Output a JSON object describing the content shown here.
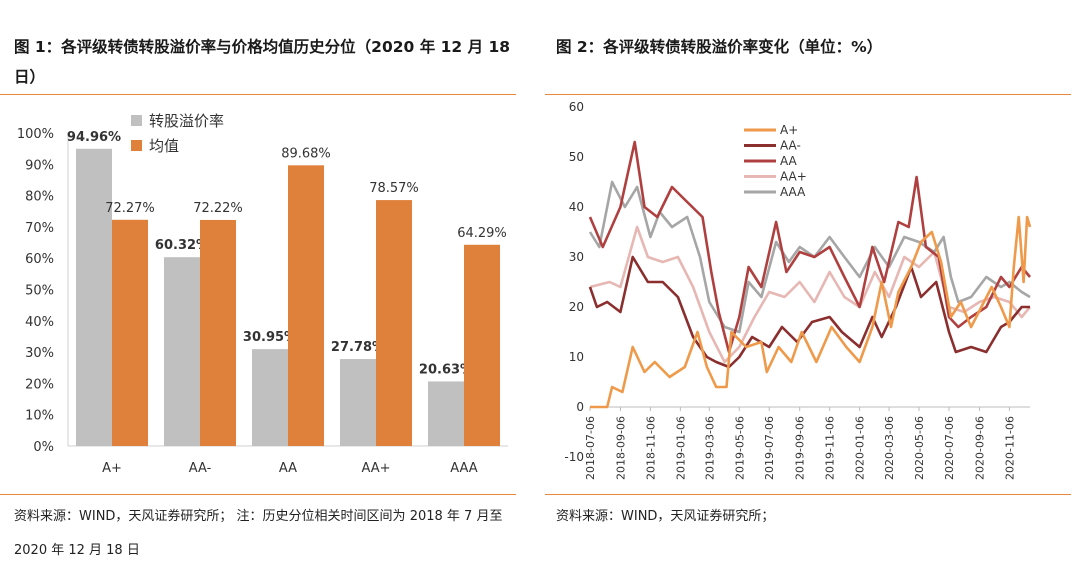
{
  "figure1": {
    "title": "图 1：各评级转债转股溢价率与价格均值历史分位（2020 年 12 月 18 日）",
    "source": "资料来源：WIND，天风证券研究所；  注：历史分位相关时间区间为 2018 年 7 月至 2020 年 12 月 18 日"
  },
  "figure2": {
    "title": "图 2：各评级转债转股溢价率变化（单位：%）",
    "source": "资料来源：WIND，天风证券研究所；"
  },
  "colors": {
    "premium_bar": "#c0c0c0",
    "price_bar": "#e0813b",
    "rule": "#e8883a",
    "A+": "#ef9a4a",
    "AA-": "#8b2e2e",
    "AA": "#b04040",
    "AA+": "#e6b7b3",
    "AAA": "#a6a6a6"
  },
  "chart_data": [
    {
      "type": "bar",
      "categories": [
        "A+",
        "AA-",
        "AA",
        "AA+",
        "AAA"
      ],
      "series": [
        {
          "name": "转股溢价率",
          "values": [
            94.96,
            60.32,
            30.95,
            27.78,
            20.63
          ]
        },
        {
          "name": "均值",
          "values": [
            72.27,
            72.22,
            89.68,
            78.57,
            64.29
          ]
        }
      ],
      "value_labels": {
        "转股溢价率": [
          "94.96%",
          "60.32%",
          "30.95%",
          "27.78%",
          "20.63%"
        ],
        "均值": [
          "72.27%",
          "72.22%",
          "89.68%",
          "78.57%",
          "64.29%"
        ]
      },
      "y_ticks": [
        "0%",
        "10%",
        "20%",
        "30%",
        "40%",
        "50%",
        "60%",
        "70%",
        "80%",
        "90%",
        "100%"
      ],
      "ylim": [
        0,
        100
      ],
      "legend": "top-center",
      "grid": false
    },
    {
      "type": "line",
      "x_ticks": [
        "2018-07-06",
        "2018-09-06",
        "2018-11-06",
        "2019-01-06",
        "2019-03-06",
        "2019-05-06",
        "2019-07-06",
        "2019-09-06",
        "2019-11-06",
        "2020-01-06",
        "2020-03-06",
        "2020-05-06",
        "2020-07-06",
        "2020-09-06",
        "2020-11-06"
      ],
      "y_ticks": [
        "-10",
        "0",
        "10",
        "20",
        "30",
        "40",
        "50",
        "60"
      ],
      "ylim": [
        -10,
        60
      ],
      "xlim": [
        "2018-07-06",
        "2020-12-18"
      ],
      "legend": "top-left",
      "grid": false,
      "series": [
        {
          "name": "A+",
          "points": [
            [
              "2018-07-06",
              0
            ],
            [
              "2018-08-10",
              0
            ],
            [
              "2018-08-20",
              4
            ],
            [
              "2018-09-10",
              3
            ],
            [
              "2018-10-01",
              12
            ],
            [
              "2018-10-25",
              7
            ],
            [
              "2018-11-15",
              9
            ],
            [
              "2018-12-15",
              6
            ],
            [
              "2019-01-15",
              8
            ],
            [
              "2019-02-10",
              15
            ],
            [
              "2019-03-01",
              8
            ],
            [
              "2019-03-20",
              4
            ],
            [
              "2019-04-10",
              4
            ],
            [
              "2019-04-20",
              15
            ],
            [
              "2019-05-20",
              12
            ],
            [
              "2019-06-20",
              13
            ],
            [
              "2019-07-01",
              7
            ],
            [
              "2019-07-25",
              12
            ],
            [
              "2019-08-20",
              9
            ],
            [
              "2019-09-10",
              15
            ],
            [
              "2019-10-10",
              9
            ],
            [
              "2019-11-10",
              16
            ],
            [
              "2019-12-10",
              12
            ],
            [
              "2020-01-06",
              9
            ],
            [
              "2020-02-01",
              16
            ],
            [
              "2020-02-20",
              25
            ],
            [
              "2020-03-10",
              16
            ],
            [
              "2020-03-25",
              23
            ],
            [
              "2020-04-20",
              28
            ],
            [
              "2020-05-10",
              33
            ],
            [
              "2020-06-01",
              35
            ],
            [
              "2020-06-20",
              29
            ],
            [
              "2020-07-10",
              18
            ],
            [
              "2020-07-30",
              21
            ],
            [
              "2020-08-20",
              16
            ],
            [
              "2020-09-10",
              20
            ],
            [
              "2020-10-01",
              24
            ],
            [
              "2020-10-20",
              20
            ],
            [
              "2020-11-06",
              16
            ],
            [
              "2020-11-15",
              28
            ],
            [
              "2020-11-25",
              38
            ],
            [
              "2020-12-05",
              25
            ],
            [
              "2020-12-12",
              38
            ],
            [
              "2020-12-18",
              36
            ]
          ]
        },
        {
          "name": "AA-",
          "points": [
            [
              "2018-07-06",
              24
            ],
            [
              "2018-07-20",
              20
            ],
            [
              "2018-08-10",
              21
            ],
            [
              "2018-09-06",
              19
            ],
            [
              "2018-10-01",
              30
            ],
            [
              "2018-11-01",
              25
            ],
            [
              "2018-12-01",
              25
            ],
            [
              "2019-01-01",
              22
            ],
            [
              "2019-02-01",
              14
            ],
            [
              "2019-03-01",
              10
            ],
            [
              "2019-03-20",
              9
            ],
            [
              "2019-04-15",
              8
            ],
            [
              "2019-05-06",
              10
            ],
            [
              "2019-06-01",
              14
            ],
            [
              "2019-07-06",
              12
            ],
            [
              "2019-08-01",
              16
            ],
            [
              "2019-09-01",
              13
            ],
            [
              "2019-10-01",
              17
            ],
            [
              "2019-11-06",
              18
            ],
            [
              "2019-12-01",
              15
            ],
            [
              "2020-01-06",
              12
            ],
            [
              "2020-02-01",
              18
            ],
            [
              "2020-02-20",
              14
            ],
            [
              "2020-03-20",
              20
            ],
            [
              "2020-04-20",
              28
            ],
            [
              "2020-05-10",
              22
            ],
            [
              "2020-06-10",
              25
            ],
            [
              "2020-07-06",
              15
            ],
            [
              "2020-07-20",
              11
            ],
            [
              "2020-08-20",
              12
            ],
            [
              "2020-09-20",
              11
            ],
            [
              "2020-10-20",
              16
            ],
            [
              "2020-11-06",
              17
            ],
            [
              "2020-12-01",
              20
            ],
            [
              "2020-12-18",
              20
            ]
          ]
        },
        {
          "name": "AA",
          "points": [
            [
              "2018-07-06",
              38
            ],
            [
              "2018-08-01",
              32
            ],
            [
              "2018-09-06",
              40
            ],
            [
              "2018-10-05",
              53
            ],
            [
              "2018-10-25",
              40
            ],
            [
              "2018-11-20",
              38
            ],
            [
              "2018-12-20",
              44
            ],
            [
              "2019-01-20",
              41
            ],
            [
              "2019-02-20",
              38
            ],
            [
              "2019-03-10",
              27
            ],
            [
              "2019-03-25",
              19
            ],
            [
              "2019-04-15",
              11
            ],
            [
              "2019-05-06",
              18
            ],
            [
              "2019-05-25",
              28
            ],
            [
              "2019-06-20",
              24
            ],
            [
              "2019-07-20",
              37
            ],
            [
              "2019-08-10",
              27
            ],
            [
              "2019-09-06",
              31
            ],
            [
              "2019-10-06",
              30
            ],
            [
              "2019-11-06",
              32
            ],
            [
              "2019-12-06",
              26
            ],
            [
              "2020-01-06",
              20
            ],
            [
              "2020-02-01",
              32
            ],
            [
              "2020-02-25",
              25
            ],
            [
              "2020-03-25",
              37
            ],
            [
              "2020-04-15",
              36
            ],
            [
              "2020-05-01",
              46
            ],
            [
              "2020-05-20",
              32
            ],
            [
              "2020-06-15",
              30
            ],
            [
              "2020-07-06",
              18
            ],
            [
              "2020-07-25",
              16
            ],
            [
              "2020-08-20",
              18
            ],
            [
              "2020-09-20",
              20
            ],
            [
              "2020-10-20",
              26
            ],
            [
              "2020-11-06",
              24
            ],
            [
              "2020-12-01",
              28
            ],
            [
              "2020-12-18",
              26
            ]
          ]
        },
        {
          "name": "AA+",
          "points": [
            [
              "2018-07-06",
              24
            ],
            [
              "2018-08-15",
              25
            ],
            [
              "2018-09-06",
              24
            ],
            [
              "2018-10-10",
              36
            ],
            [
              "2018-11-01",
              30
            ],
            [
              "2018-12-01",
              29
            ],
            [
              "2019-01-01",
              30
            ],
            [
              "2019-02-01",
              24
            ],
            [
              "2019-03-06",
              15
            ],
            [
              "2019-04-06",
              9
            ],
            [
              "2019-05-06",
              12
            ],
            [
              "2019-06-06",
              18
            ],
            [
              "2019-07-06",
              23
            ],
            [
              "2019-08-06",
              22
            ],
            [
              "2019-09-06",
              25
            ],
            [
              "2019-10-06",
              21
            ],
            [
              "2019-11-06",
              27
            ],
            [
              "2019-12-06",
              22
            ],
            [
              "2020-01-06",
              20
            ],
            [
              "2020-02-06",
              27
            ],
            [
              "2020-03-06",
              22
            ],
            [
              "2020-04-06",
              30
            ],
            [
              "2020-05-06",
              28
            ],
            [
              "2020-06-06",
              31
            ],
            [
              "2020-07-06",
              20
            ],
            [
              "2020-08-06",
              19
            ],
            [
              "2020-09-06",
              21
            ],
            [
              "2020-10-06",
              22
            ],
            [
              "2020-11-06",
              21
            ],
            [
              "2020-12-01",
              18
            ],
            [
              "2020-12-18",
              20
            ]
          ]
        },
        {
          "name": "AAA",
          "points": [
            [
              "2018-07-06",
              35
            ],
            [
              "2018-07-25",
              32
            ],
            [
              "2018-08-20",
              45
            ],
            [
              "2018-09-15",
              40
            ],
            [
              "2018-10-10",
              44
            ],
            [
              "2018-11-06",
              34
            ],
            [
              "2018-11-25",
              39
            ],
            [
              "2018-12-20",
              36
            ],
            [
              "2019-01-20",
              38
            ],
            [
              "2019-02-15",
              30
            ],
            [
              "2019-03-06",
              21
            ],
            [
              "2019-04-06",
              16
            ],
            [
              "2019-05-06",
              15
            ],
            [
              "2019-05-25",
              25
            ],
            [
              "2019-06-20",
              22
            ],
            [
              "2019-07-20",
              33
            ],
            [
              "2019-08-15",
              29
            ],
            [
              "2019-09-06",
              32
            ],
            [
              "2019-10-06",
              30
            ],
            [
              "2019-11-06",
              34
            ],
            [
              "2019-12-06",
              30
            ],
            [
              "2020-01-06",
              26
            ],
            [
              "2020-02-06",
              32
            ],
            [
              "2020-03-06",
              28
            ],
            [
              "2020-04-06",
              34
            ],
            [
              "2020-05-06",
              33
            ],
            [
              "2020-06-06",
              31
            ],
            [
              "2020-06-25",
              34
            ],
            [
              "2020-07-10",
              26
            ],
            [
              "2020-07-25",
              21
            ],
            [
              "2020-08-20",
              22
            ],
            [
              "2020-09-20",
              26
            ],
            [
              "2020-10-20",
              24
            ],
            [
              "2020-11-06",
              25
            ],
            [
              "2020-12-01",
              23
            ],
            [
              "2020-12-18",
              22
            ]
          ]
        }
      ]
    }
  ]
}
